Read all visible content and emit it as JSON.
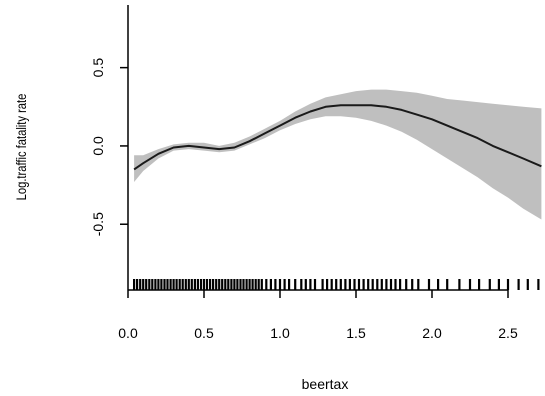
{
  "chart_data": {
    "type": "line",
    "title": "",
    "xlabel": "beertax",
    "ylabel": "Log.traffic fatality rate",
    "x_ticks": [
      "0.0",
      "0.5",
      "1.0",
      "1.5",
      "2.0",
      "2.5"
    ],
    "y_ticks": [
      "-0.5",
      "0.0",
      "0.5"
    ],
    "x_tick_values": [
      0.0,
      0.5,
      1.0,
      1.5,
      2.0,
      2.5
    ],
    "y_tick_values": [
      -0.5,
      0.0,
      0.5
    ],
    "xlim": [
      0.0,
      2.75
    ],
    "ylim": [
      -0.92,
      0.9
    ],
    "grid": false,
    "band_color": "#bfbfbf",
    "line_color": "#1a1a1a",
    "series": [
      {
        "x": [
          0.04,
          0.1,
          0.2,
          0.3,
          0.4,
          0.5,
          0.6,
          0.7,
          0.8,
          0.9,
          1.0,
          1.1,
          1.2,
          1.3,
          1.4,
          1.5,
          1.6,
          1.7,
          1.8,
          1.9,
          2.0,
          2.1,
          2.2,
          2.3,
          2.4,
          2.5,
          2.6,
          2.72
        ],
        "y": [
          -0.15,
          -0.11,
          -0.05,
          -0.01,
          0.0,
          -0.01,
          -0.02,
          -0.01,
          0.03,
          0.08,
          0.13,
          0.18,
          0.22,
          0.25,
          0.26,
          0.26,
          0.26,
          0.25,
          0.23,
          0.2,
          0.17,
          0.13,
          0.09,
          0.05,
          0.0,
          -0.04,
          -0.08,
          -0.13
        ],
        "lower": [
          -0.23,
          -0.16,
          -0.08,
          -0.03,
          -0.02,
          -0.03,
          -0.04,
          -0.03,
          0.01,
          0.05,
          0.1,
          0.14,
          0.17,
          0.19,
          0.19,
          0.18,
          0.16,
          0.13,
          0.09,
          0.04,
          -0.02,
          -0.08,
          -0.14,
          -0.2,
          -0.27,
          -0.33,
          -0.4,
          -0.47
        ],
        "upper": [
          -0.06,
          -0.06,
          -0.02,
          0.01,
          0.02,
          0.02,
          0.0,
          0.02,
          0.06,
          0.11,
          0.16,
          0.22,
          0.27,
          0.31,
          0.33,
          0.35,
          0.36,
          0.36,
          0.35,
          0.34,
          0.32,
          0.3,
          0.29,
          0.28,
          0.27,
          0.26,
          0.25,
          0.24
        ]
      }
    ],
    "rug": [
      0.04,
      0.06,
      0.08,
      0.1,
      0.12,
      0.14,
      0.16,
      0.18,
      0.2,
      0.22,
      0.24,
      0.26,
      0.28,
      0.3,
      0.32,
      0.34,
      0.36,
      0.38,
      0.4,
      0.42,
      0.44,
      0.46,
      0.48,
      0.5,
      0.52,
      0.54,
      0.56,
      0.58,
      0.6,
      0.62,
      0.64,
      0.66,
      0.68,
      0.7,
      0.72,
      0.74,
      0.76,
      0.78,
      0.8,
      0.82,
      0.84,
      0.86,
      0.88,
      0.91,
      0.94,
      0.97,
      1.0,
      1.03,
      1.06,
      1.1,
      1.14,
      1.17,
      1.2,
      1.23,
      1.28,
      1.31,
      1.34,
      1.37,
      1.4,
      1.43,
      1.46,
      1.49,
      1.52,
      1.55,
      1.58,
      1.61,
      1.64,
      1.67,
      1.7,
      1.73,
      1.76,
      1.79,
      1.83,
      1.87,
      1.91,
      1.98,
      2.04,
      2.1,
      2.18,
      2.25,
      2.31,
      2.38,
      2.44,
      2.5,
      2.57,
      2.63,
      2.7
    ]
  }
}
